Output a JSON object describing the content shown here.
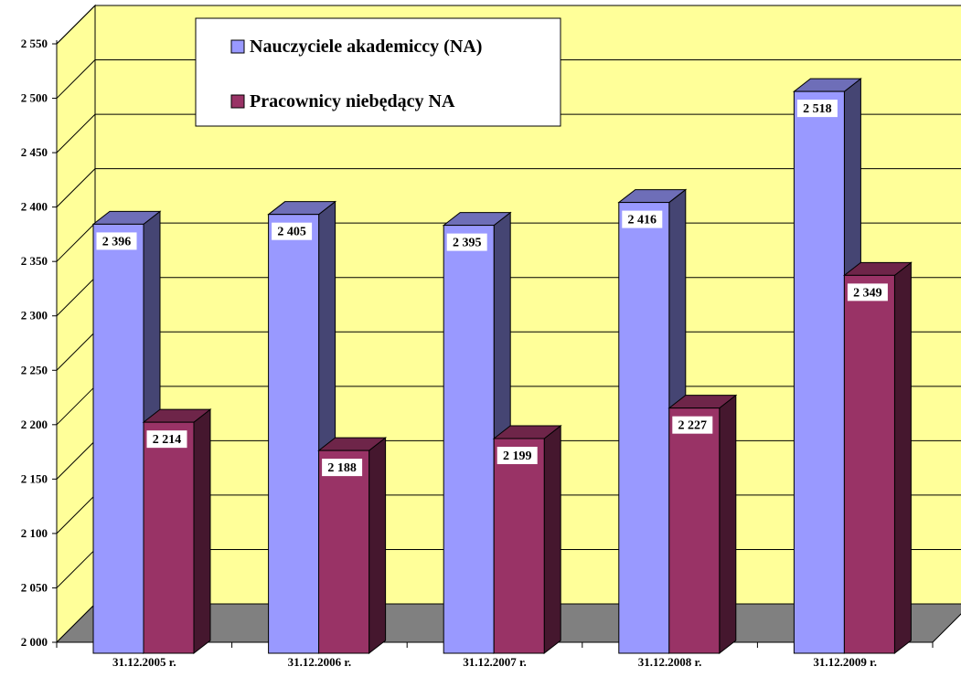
{
  "chart_data": {
    "type": "bar",
    "three_d": true,
    "categories": [
      "31.12.2005 r.",
      "31.12.2006 r.",
      "31.12.2007 r.",
      "31.12.2008 r.",
      "31.12.2009 r."
    ],
    "series": [
      {
        "name": "Nauczyciele akademiccy (NA)",
        "values": [
          2396,
          2405,
          2395,
          2416,
          2518
        ],
        "data_labels": [
          "2 396",
          "2 405",
          "2 395",
          "2 416",
          "2 518"
        ],
        "color": "#9999FF"
      },
      {
        "name": "Pracownicy niebędący NA",
        "values": [
          2214,
          2188,
          2199,
          2227,
          2349
        ],
        "data_labels": [
          "2 214",
          "2 188",
          "2 199",
          "2 227",
          "2 349"
        ],
        "color": "#993366"
      }
    ],
    "ylim": [
      2000,
      2550
    ],
    "y_ticks": [
      2000,
      2050,
      2100,
      2150,
      2200,
      2250,
      2300,
      2350,
      2400,
      2450,
      2500,
      2550
    ],
    "y_tick_labels": [
      "2 000",
      "2 050",
      "2 100",
      "2 150",
      "2 200",
      "2 250",
      "2 300",
      "2 350",
      "2 400",
      "2 450",
      "2 500",
      "2 550"
    ],
    "grid": true,
    "legend_position": "top-left",
    "colors": {
      "wall": "#FFFF99",
      "floor": "#808080",
      "gridline": "#000000"
    }
  }
}
